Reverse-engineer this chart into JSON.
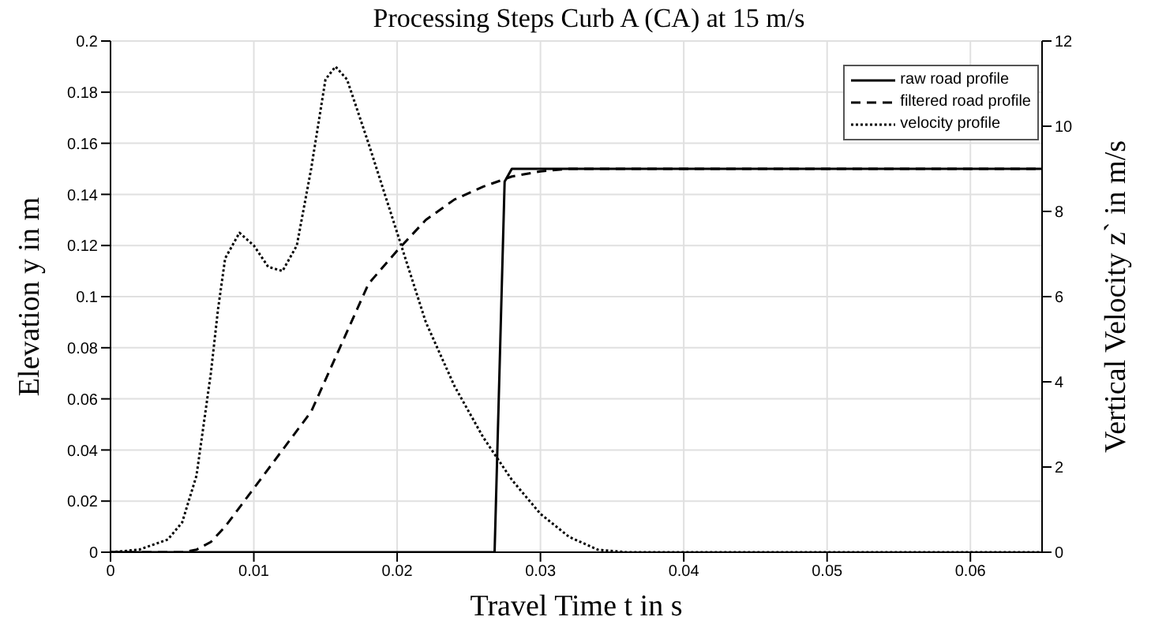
{
  "chart_data": {
    "type": "line",
    "title": "Processing Steps Curb A (CA) at 15 m/s",
    "xlabel": "Travel Time t in s",
    "ylabel": "Elevation y in m",
    "y2label": "Vertical Velocity z` in m/s",
    "xlim": [
      0,
      0.065
    ],
    "xticks": [
      0,
      0.01,
      0.02,
      0.03,
      0.04,
      0.05,
      0.06
    ],
    "ylim": [
      0,
      0.2
    ],
    "yticks": [
      0,
      0.02,
      0.04,
      0.06,
      0.08,
      0.1,
      0.12,
      0.14,
      0.16,
      0.18,
      0.2
    ],
    "y2lim": [
      0,
      12
    ],
    "y2ticks": [
      0,
      2,
      4,
      6,
      8,
      10,
      12
    ],
    "grid": true,
    "legend": "top right",
    "marker": "none",
    "series": [
      {
        "name": "raw road profile",
        "color": "#000000",
        "line_style": "solid",
        "x": [
          0,
          0.0268,
          0.0275,
          0.028,
          0.065
        ],
        "values": [
          0,
          0,
          0.145,
          0.15,
          0.15
        ]
      },
      {
        "name": "filtered road profile",
        "color": "#000000",
        "line_style": "dashed",
        "x": [
          0,
          0.005,
          0.006,
          0.007,
          0.008,
          0.01,
          0.012,
          0.014,
          0.016,
          0.018,
          0.02,
          0.022,
          0.024,
          0.026,
          0.028,
          0.03,
          0.032,
          0.065
        ],
        "values": [
          0,
          0,
          0.001,
          0.004,
          0.01,
          0.025,
          0.04,
          0.055,
          0.08,
          0.105,
          0.118,
          0.13,
          0.138,
          0.143,
          0.147,
          0.149,
          0.15,
          0.15
        ]
      },
      {
        "name": "velocity profile",
        "color": "#000000",
        "line_style": "dotted",
        "axis": "y2",
        "x": [
          0,
          0.002,
          0.004,
          0.005,
          0.006,
          0.007,
          0.0075,
          0.008,
          0.009,
          0.01,
          0.011,
          0.012,
          0.013,
          0.014,
          0.015,
          0.0157,
          0.0165,
          0.018,
          0.02,
          0.022,
          0.024,
          0.026,
          0.027,
          0.028,
          0.03,
          0.032,
          0.034,
          0.036,
          0.065
        ],
        "values": [
          0,
          0.06,
          0.3,
          0.7,
          1.8,
          4.2,
          5.7,
          6.9,
          7.5,
          7.2,
          6.7,
          6.6,
          7.2,
          9,
          11.1,
          11.4,
          11.1,
          9.6,
          7.5,
          5.4,
          3.9,
          2.7,
          2.2,
          1.7,
          0.9,
          0.36,
          0.06,
          0,
          0
        ]
      }
    ]
  }
}
